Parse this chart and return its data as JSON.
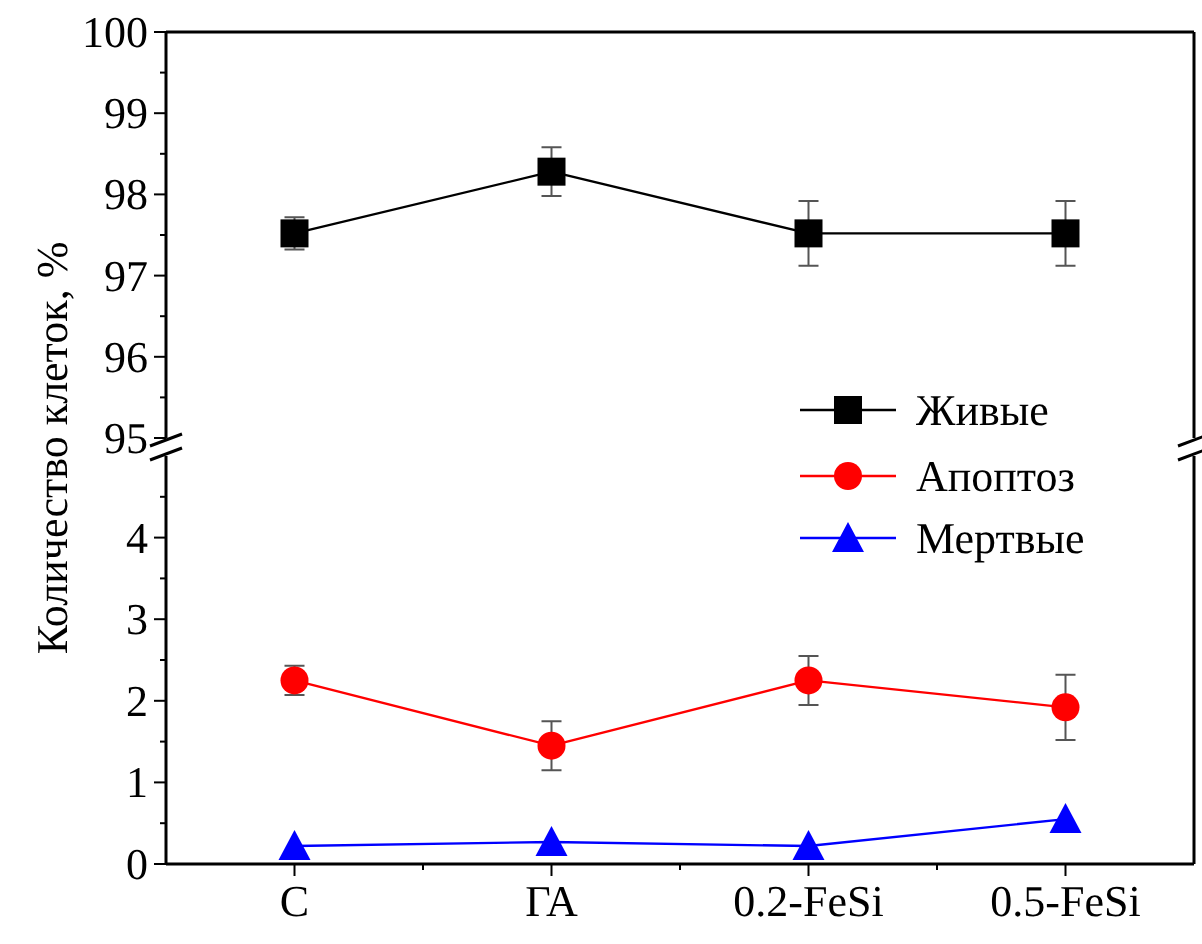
{
  "chart_data": [
    {
      "type": "line",
      "categories": [
        null,
        null,
        null,
        null
      ],
      "ylim": [
        95,
        100
      ],
      "yticks": [
        95,
        96,
        97,
        98,
        99,
        100
      ],
      "tick_labels": "y",
      "legend": "bottom right",
      "series": [
        {
          "name": "Живые",
          "color": "#000000",
          "marker": "square",
          "values": [
            97.52,
            98.28,
            97.52,
            97.52
          ],
          "errors": [
            0.2,
            0.3,
            0.4,
            0.4
          ]
        }
      ]
    },
    {
      "type": "line",
      "categories": [
        "C",
        "ГА",
        "0.2-FeSi",
        "0.5-FeSi"
      ],
      "ylim": [
        0,
        5
      ],
      "yticks": [
        0,
        1,
        2,
        3,
        4
      ],
      "legend": "top right",
      "ylabel": "Количество клеток, %",
      "series": [
        {
          "name": "Апоптоз",
          "color": "#ff0000",
          "marker": "circle",
          "values": [
            2.25,
            1.45,
            2.25,
            1.92
          ],
          "errors": [
            0.18,
            0.3,
            0.3,
            0.4
          ]
        },
        {
          "name": "Мертвые",
          "color": "#0000ff",
          "marker": "triangle",
          "values": [
            0.22,
            0.27,
            0.22,
            0.55
          ]
        }
      ]
    }
  ]
}
